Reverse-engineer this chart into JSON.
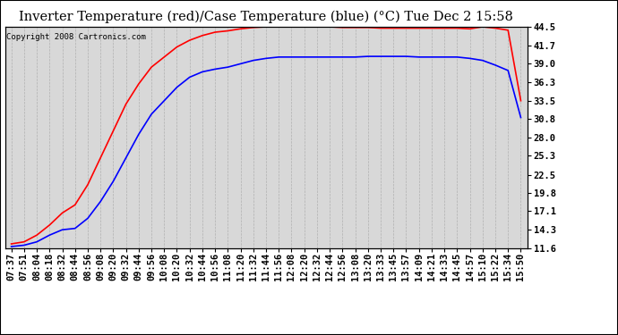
{
  "title": "Inverter Temperature (red)/Case Temperature (blue) (°C) Tue Dec 2 15:58",
  "copyright": "Copyright 2008 Cartronics.com",
  "yticks": [
    11.6,
    14.3,
    17.1,
    19.8,
    22.5,
    25.3,
    28.0,
    30.8,
    33.5,
    36.3,
    39.0,
    41.7,
    44.5
  ],
  "xtick_labels": [
    "07:37",
    "07:51",
    "08:04",
    "08:18",
    "08:32",
    "08:44",
    "08:56",
    "09:08",
    "09:20",
    "09:32",
    "09:44",
    "09:56",
    "10:08",
    "10:20",
    "10:32",
    "10:44",
    "10:56",
    "11:08",
    "11:20",
    "11:32",
    "11:44",
    "11:56",
    "12:08",
    "12:20",
    "12:32",
    "12:44",
    "12:56",
    "13:08",
    "13:20",
    "13:33",
    "13:45",
    "13:57",
    "14:09",
    "14:21",
    "14:33",
    "14:45",
    "14:57",
    "15:10",
    "15:22",
    "15:34",
    "15:50"
  ],
  "red_data": [
    12.2,
    12.5,
    13.5,
    15.0,
    16.8,
    18.0,
    21.0,
    25.0,
    29.0,
    33.0,
    36.0,
    38.5,
    40.0,
    41.5,
    42.5,
    43.2,
    43.7,
    43.9,
    44.2,
    44.4,
    44.5,
    44.5,
    44.5,
    44.5,
    44.5,
    44.5,
    44.4,
    44.4,
    44.4,
    44.3,
    44.3,
    44.3,
    44.3,
    44.3,
    44.3,
    44.3,
    44.2,
    44.5,
    44.3,
    44.0,
    33.5
  ],
  "blue_data": [
    11.8,
    12.0,
    12.5,
    13.5,
    14.3,
    14.5,
    16.0,
    18.5,
    21.5,
    25.0,
    28.5,
    31.5,
    33.5,
    35.5,
    37.0,
    37.8,
    38.2,
    38.5,
    39.0,
    39.5,
    39.8,
    40.0,
    40.0,
    40.0,
    40.0,
    40.0,
    40.0,
    40.0,
    40.1,
    40.1,
    40.1,
    40.1,
    40.0,
    40.0,
    40.0,
    40.0,
    39.8,
    39.5,
    38.8,
    38.0,
    31.0
  ],
  "fig_bg_color": "#ffffff",
  "plot_bg_color": "#d8d8d8",
  "red_color": "#ff0000",
  "blue_color": "#0000ff",
  "grid_color": "#b0b0b0",
  "title_fontsize": 10.5,
  "tick_fontsize": 7.5,
  "copyright_fontsize": 6.5,
  "ylim": [
    11.6,
    44.5
  ],
  "linewidth": 1.2
}
